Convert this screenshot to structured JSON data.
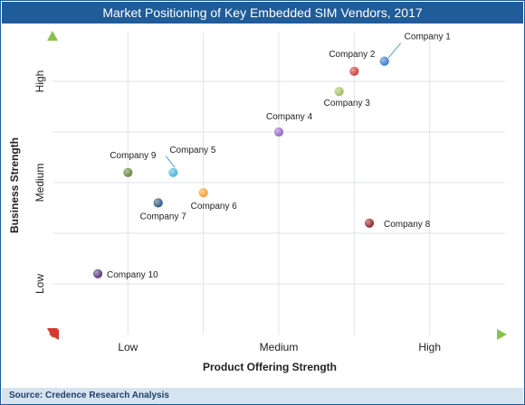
{
  "chart_data": {
    "type": "scatter",
    "title": "Market Positioning of Key Embedded SIM Vendors, 2017",
    "xlabel": "Product Offering Strength",
    "ylabel": "Business Strength",
    "x_categories": [
      "Low",
      "Medium",
      "High"
    ],
    "y_categories": [
      "Low",
      "Medium",
      "High"
    ],
    "xlim": [
      0,
      3
    ],
    "ylim": [
      0,
      3
    ],
    "grid": true,
    "points": [
      {
        "label": "Company 1",
        "x": 2.2,
        "y": 2.7,
        "color": "#2e75c6"
      },
      {
        "label": "Company 2",
        "x": 2.0,
        "y": 2.6,
        "color": "#d0312d"
      },
      {
        "label": "Company 3",
        "x": 1.9,
        "y": 2.4,
        "color": "#9bbb59"
      },
      {
        "label": "Company 4",
        "x": 1.5,
        "y": 2.0,
        "color": "#8e5cc8"
      },
      {
        "label": "Company 5",
        "x": 0.8,
        "y": 1.6,
        "color": "#3fb2d6"
      },
      {
        "label": "Company 6",
        "x": 1.0,
        "y": 1.4,
        "color": "#f39a27"
      },
      {
        "label": "Company 7",
        "x": 0.7,
        "y": 1.3,
        "color": "#1f4e79"
      },
      {
        "label": "Company 8",
        "x": 2.1,
        "y": 1.1,
        "color": "#8b1a1a"
      },
      {
        "label": "Company 9",
        "x": 0.5,
        "y": 1.6,
        "color": "#5a7f2e"
      },
      {
        "label": "Company 10",
        "x": 0.3,
        "y": 0.6,
        "color": "#4b2c73"
      }
    ]
  },
  "footer": {
    "source": "Source: Credence Research Analysis"
  }
}
